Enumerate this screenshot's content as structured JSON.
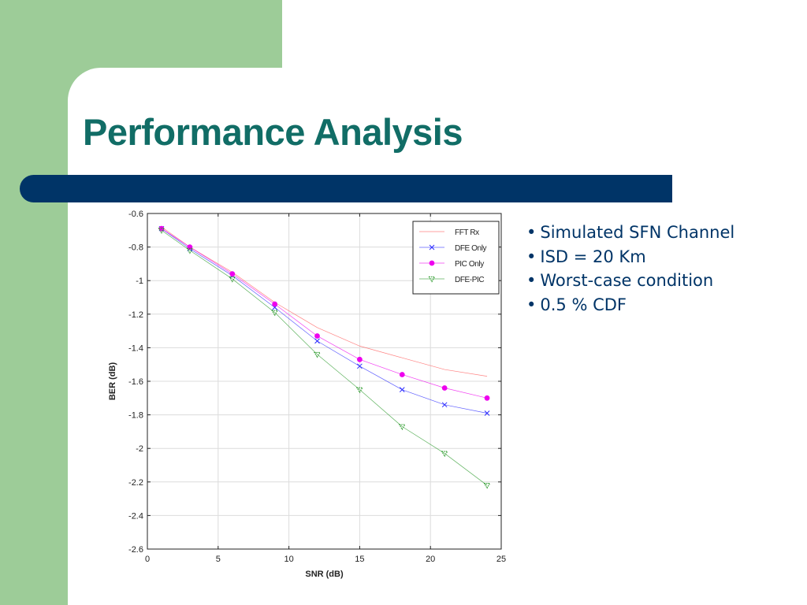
{
  "slide": {
    "title": "Performance Analysis",
    "bullets": [
      "Simulated SFN Channel",
      "ISD = 20 Km",
      "Worst-case condition",
      "0.5 % CDF"
    ]
  },
  "colors": {
    "green": "#9dcc98",
    "navy": "#003467",
    "title": "#116d66"
  },
  "chart_data": {
    "type": "line",
    "xlabel": "SNR (dB)",
    "ylabel": "BER (dB)",
    "xlim": [
      0,
      25
    ],
    "ylim": [
      -2.6,
      -0.6
    ],
    "xticks": [
      0,
      5,
      10,
      15,
      20,
      25
    ],
    "yticks": [
      -0.6,
      -0.8,
      -1,
      -1.2,
      -1.4,
      -1.6,
      -1.8,
      -2,
      -2.2,
      -2.4,
      -2.6
    ],
    "grid": true,
    "legend_position": "top-right",
    "series": [
      {
        "name": "FFT Rx",
        "color": "#ff5a5a",
        "marker": "none",
        "x": [
          1,
          3,
          6,
          9,
          12,
          15,
          18,
          21,
          24
        ],
        "y": [
          -0.68,
          -0.8,
          -0.95,
          -1.13,
          -1.28,
          -1.39,
          -1.46,
          -1.53,
          -1.57
        ]
      },
      {
        "name": "DFE Only",
        "color": "#2c2cff",
        "marker": "x",
        "x": [
          1,
          3,
          6,
          9,
          12,
          15,
          18,
          21,
          24
        ],
        "y": [
          -0.69,
          -0.81,
          -0.97,
          -1.16,
          -1.36,
          -1.51,
          -1.65,
          -1.74,
          -1.79
        ]
      },
      {
        "name": "PIC Only",
        "color": "#ee00ee",
        "marker": "dot",
        "x": [
          1,
          3,
          6,
          9,
          12,
          15,
          18,
          21,
          24
        ],
        "y": [
          -0.69,
          -0.8,
          -0.96,
          -1.14,
          -1.33,
          -1.47,
          -1.56,
          -1.64,
          -1.7
        ]
      },
      {
        "name": "DFE-PIC",
        "color": "#2a9a2a",
        "marker": "triangle",
        "x": [
          1,
          3,
          6,
          9,
          12,
          15,
          18,
          21,
          24
        ],
        "y": [
          -0.7,
          -0.82,
          -0.99,
          -1.19,
          -1.44,
          -1.65,
          -1.87,
          -2.03,
          -2.22
        ]
      }
    ]
  }
}
